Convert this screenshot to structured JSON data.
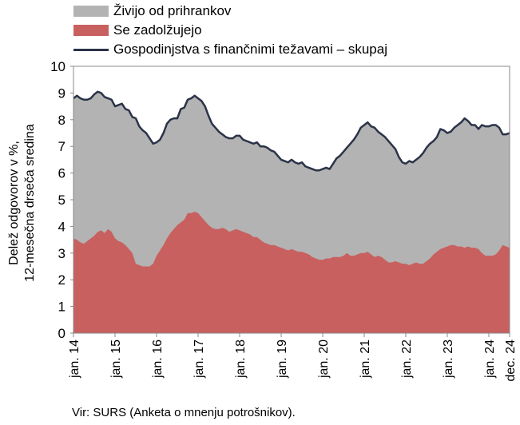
{
  "legend": {
    "savings_label": "Živijo od prihrankov",
    "borrowing_label": "Se zadolžujejo",
    "total_label": "Gospodinjstva s finančnimi težavami – skupaj"
  },
  "colors": {
    "savings": "#b3b3b3",
    "borrowing": "#c8605f",
    "total": "#2b3348",
    "plot_border": "#888888"
  },
  "axis": {
    "ylabel_line1": "Delež odgovorov v %,",
    "ylabel_line2": "12-mesečna  drseča sredina"
  },
  "source": "Vir: SURS (Anketa o mnenju potrošnikov).",
  "chart_data": {
    "type": "area",
    "xlabel": "",
    "ylabel": "Delež odgovorov v %, 12-mesečna  drseča sredina",
    "x_start": "2014-01",
    "x_end": "2024-12",
    "ylim": [
      0,
      10
    ],
    "yticks": [
      0,
      1,
      2,
      3,
      4,
      5,
      6,
      7,
      8,
      9,
      10
    ],
    "xtick_labels": [
      "jan. 14",
      "jan. 15",
      "jan. 16",
      "jan. 17",
      "jan. 18",
      "jan. 19",
      "jan. 20",
      "jan. 21",
      "jan. 22",
      "jan. 23",
      "jan. 24",
      "dec. 24"
    ],
    "grid": false,
    "legend_position": "top-left",
    "series": [
      {
        "name": "Gospodinjstva s finančnimi težavami – skupaj",
        "kind": "line (top of grey area)",
        "values": [
          8.8,
          8.9,
          8.8,
          8.75,
          8.75,
          8.8,
          8.95,
          9.05,
          9.0,
          8.85,
          8.8,
          8.75,
          8.5,
          8.55,
          8.6,
          8.4,
          8.35,
          8.1,
          8.05,
          7.75,
          7.6,
          7.5,
          7.3,
          7.1,
          7.15,
          7.25,
          7.5,
          7.85,
          8.0,
          8.05,
          8.05,
          8.4,
          8.45,
          8.75,
          8.8,
          8.9,
          8.8,
          8.7,
          8.5,
          8.15,
          7.85,
          7.7,
          7.55,
          7.45,
          7.35,
          7.3,
          7.3,
          7.4,
          7.4,
          7.25,
          7.2,
          7.15,
          7.1,
          7.15,
          7.0,
          7.0,
          6.95,
          6.85,
          6.8,
          6.65,
          6.5,
          6.45,
          6.4,
          6.5,
          6.4,
          6.35,
          6.4,
          6.25,
          6.2,
          6.15,
          6.1,
          6.1,
          6.15,
          6.2,
          6.15,
          6.35,
          6.55,
          6.65,
          6.8,
          6.95,
          7.1,
          7.25,
          7.45,
          7.7,
          7.8,
          7.9,
          7.75,
          7.7,
          7.55,
          7.45,
          7.35,
          7.2,
          7.05,
          6.9,
          6.6,
          6.4,
          6.35,
          6.45,
          6.4,
          6.5,
          6.6,
          6.75,
          6.95,
          7.1,
          7.2,
          7.35,
          7.65,
          7.6,
          7.5,
          7.55,
          7.7,
          7.8,
          7.9,
          8.05,
          7.95,
          7.8,
          7.8,
          7.65,
          7.8,
          7.75,
          7.75,
          7.8,
          7.8,
          7.7,
          7.45,
          7.45,
          7.5
        ]
      },
      {
        "name": "Se zadolžujejo",
        "kind": "red area",
        "values": [
          3.55,
          3.5,
          3.4,
          3.35,
          3.45,
          3.55,
          3.65,
          3.8,
          3.85,
          3.75,
          3.9,
          3.8,
          3.55,
          3.45,
          3.4,
          3.3,
          3.15,
          3.0,
          2.6,
          2.55,
          2.5,
          2.5,
          2.5,
          2.6,
          2.9,
          3.1,
          3.3,
          3.55,
          3.75,
          3.9,
          4.05,
          4.15,
          4.25,
          4.5,
          4.5,
          4.55,
          4.5,
          4.35,
          4.2,
          4.05,
          3.95,
          3.9,
          3.9,
          3.95,
          3.9,
          3.8,
          3.85,
          3.9,
          3.85,
          3.8,
          3.75,
          3.7,
          3.6,
          3.6,
          3.5,
          3.4,
          3.35,
          3.3,
          3.3,
          3.25,
          3.2,
          3.15,
          3.1,
          3.15,
          3.1,
          3.05,
          3.05,
          3.0,
          2.95,
          2.85,
          2.8,
          2.75,
          2.75,
          2.8,
          2.8,
          2.85,
          2.85,
          2.85,
          2.9,
          3.0,
          2.9,
          2.9,
          2.95,
          3.0,
          3.0,
          3.05,
          2.95,
          2.85,
          2.9,
          2.85,
          2.75,
          2.65,
          2.65,
          2.7,
          2.65,
          2.6,
          2.6,
          2.55,
          2.6,
          2.65,
          2.6,
          2.6,
          2.7,
          2.8,
          2.95,
          3.05,
          3.15,
          3.2,
          3.25,
          3.3,
          3.3,
          3.25,
          3.25,
          3.2,
          3.25,
          3.2,
          3.2,
          3.15,
          3.0,
          2.9,
          2.9,
          2.9,
          2.95,
          3.1,
          3.3,
          3.25,
          3.2
        ]
      }
    ]
  }
}
